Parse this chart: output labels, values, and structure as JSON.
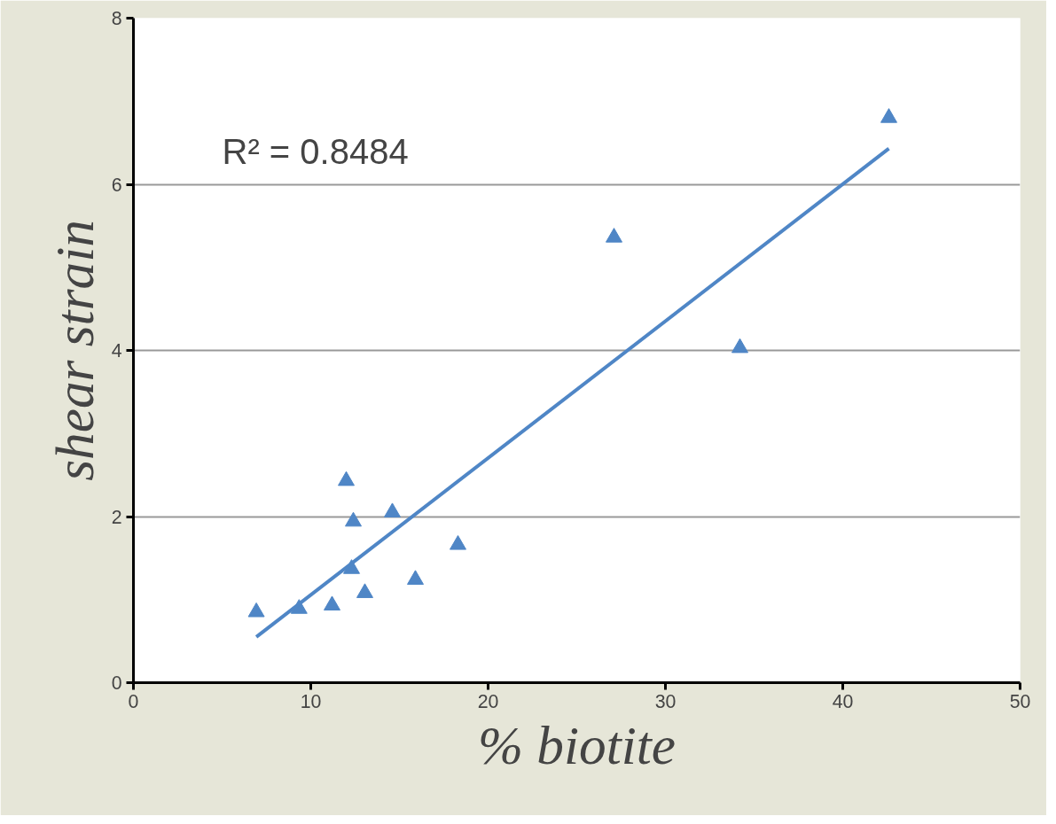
{
  "chart_data": {
    "type": "scatter",
    "xlabel": "% biotite",
    "ylabel": "shear strain",
    "annotations": [
      "R² = 0.8484"
    ],
    "xlim": [
      0,
      50
    ],
    "ylim": [
      0,
      8
    ],
    "xticks": [
      0,
      10,
      20,
      30,
      40,
      50
    ],
    "yticks": [
      0,
      2,
      4,
      6,
      8
    ],
    "grid": "y",
    "series": [
      {
        "marker": "triangle",
        "color": "#4f86c6",
        "x": [
          6.93,
          9.34,
          11.2,
          12.0,
          12.4,
          12.3,
          13.05,
          14.6,
          15.9,
          18.3,
          27.1,
          34.2,
          42.6
        ],
        "values": [
          0.85,
          0.89,
          0.93,
          2.43,
          1.94,
          1.37,
          1.08,
          2.05,
          1.24,
          1.66,
          5.36,
          4.03,
          6.8
        ]
      },
      {
        "type": "line",
        "color": "#4f86c6",
        "line_style": "solid",
        "x": [
          6.93,
          42.6
        ],
        "values": [
          0.55,
          6.43
        ]
      }
    ]
  }
}
